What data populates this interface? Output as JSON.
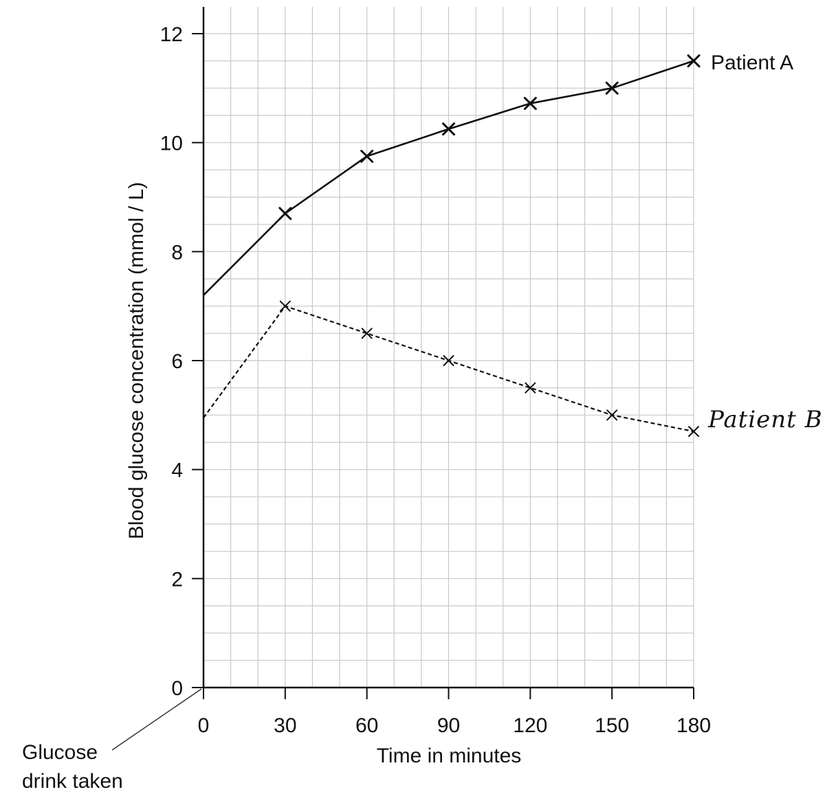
{
  "chart_data": {
    "type": "line",
    "xlabel": "Time in minutes",
    "ylabel": "Blood glucose concentration (mmol / L)",
    "xlim": [
      0,
      180
    ],
    "ylim": [
      0,
      12
    ],
    "x_ticks": [
      0,
      30,
      60,
      90,
      120,
      150,
      180
    ],
    "y_ticks": [
      0,
      2,
      4,
      6,
      8,
      10,
      12
    ],
    "grid": true,
    "series": [
      {
        "name": "Patient A",
        "style": "solid",
        "x": [
          0,
          30,
          60,
          90,
          120,
          150,
          180
        ],
        "values": [
          7.2,
          8.7,
          9.75,
          10.25,
          10.72,
          11.0,
          11.5
        ],
        "marked_x": [
          30,
          60,
          90,
          120,
          150,
          180
        ]
      },
      {
        "name": "Patient B",
        "style": "dashed",
        "x": [
          0,
          30,
          60,
          90,
          120,
          150,
          180
        ],
        "values": [
          4.95,
          7.0,
          6.5,
          6.0,
          5.5,
          5.0,
          4.7
        ],
        "marked_x": [
          30,
          60,
          90,
          120,
          150,
          180
        ]
      }
    ],
    "annotations": [
      {
        "text_lines": [
          "Glucose",
          "drink taken"
        ],
        "points_to_x": 0
      }
    ]
  },
  "colors": {
    "line": "#111111",
    "grid": "#c8c8c8",
    "axis": "#111111"
  }
}
